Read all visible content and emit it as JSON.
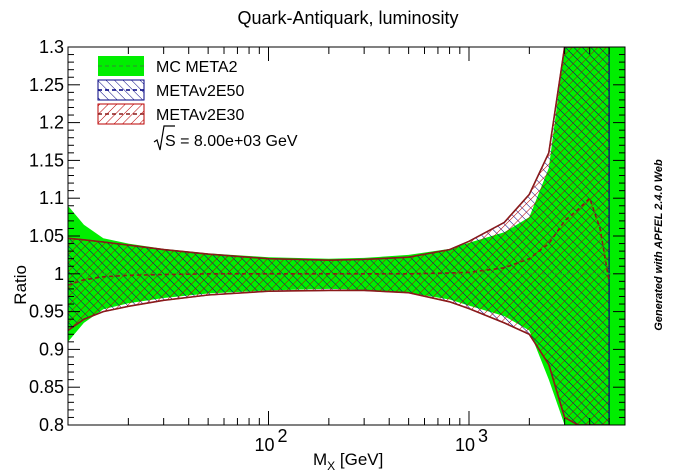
{
  "chart_data": {
    "type": "area",
    "title": "Quark-Antiquark, luminosity",
    "xlabel": "M_X [GeV]",
    "xlabel_main": "M",
    "xlabel_sub": "X",
    "xlabel_unit": " [GeV]",
    "ylabel": "Ratio",
    "x_scale": "log",
    "xlim": [
      10,
      6000
    ],
    "ylim": [
      0.8,
      1.3
    ],
    "y_ticks": [
      0.8,
      0.85,
      0.9,
      0.95,
      1.0,
      1.05,
      1.1,
      1.15,
      1.2,
      1.25,
      1.3
    ],
    "y_tick_labels": [
      "0.8",
      "0.85",
      "0.9",
      "0.95",
      "1",
      "1.05",
      "1.1",
      "1.15",
      "1.2",
      "1.25",
      "1.3"
    ],
    "x_major_ticks": [
      100,
      1000
    ],
    "x_tick_label_base": "10",
    "x_tick_label_exps": [
      "2",
      "3"
    ],
    "reference_line": 1.0,
    "legend": {
      "placement": "top-left",
      "entries": [
        "MC META2",
        "METAv2E50",
        "METAv2E30"
      ],
      "note_prefix": "S = 8.00e+03 GeV"
    },
    "series": [
      {
        "name": "MC META2",
        "color": "#00ee00",
        "line_color": "#22aa22",
        "x": [
          10,
          12,
          15,
          20,
          30,
          50,
          100,
          200,
          300,
          500,
          800,
          1000,
          1500,
          2000,
          2500,
          3000,
          3500,
          4000,
          4500,
          5000,
          5500,
          6000
        ],
        "upper": [
          1.09,
          1.065,
          1.047,
          1.04,
          1.033,
          1.027,
          1.022,
          1.02,
          1.021,
          1.025,
          1.033,
          1.041,
          1.055,
          1.075,
          1.14,
          1.3,
          1.3,
          1.3,
          1.3,
          1.3,
          1.3,
          1.3
        ],
        "lower": [
          0.91,
          0.935,
          0.953,
          0.961,
          0.968,
          0.974,
          0.978,
          0.98,
          0.979,
          0.975,
          0.966,
          0.958,
          0.944,
          0.925,
          0.86,
          0.8,
          0.8,
          0.8,
          0.8,
          0.8,
          0.8,
          0.8
        ],
        "central": [
          1.0,
          1.0,
          1.0,
          1.0,
          1.0,
          1.0,
          1.0,
          1.0,
          1.0,
          1.0,
          1.0,
          1.0,
          1.0,
          1.0,
          1.0,
          1.0,
          1.0,
          1.0,
          1.0,
          1.0,
          1.0,
          1.0
        ]
      },
      {
        "name": "METAv2E50",
        "color": "#000080",
        "x": [
          10,
          12,
          15,
          20,
          30,
          50,
          100,
          200,
          300,
          500,
          800,
          1000,
          1500,
          2000,
          2500,
          3000,
          3500,
          4000,
          4500,
          5000
        ],
        "upper": [
          1.047,
          1.045,
          1.042,
          1.038,
          1.032,
          1.026,
          1.02,
          1.018,
          1.019,
          1.022,
          1.032,
          1.043,
          1.068,
          1.105,
          1.16,
          1.3,
          1.3,
          1.3,
          1.3,
          1.3
        ],
        "lower": [
          0.925,
          0.94,
          0.95,
          0.957,
          0.965,
          0.972,
          0.977,
          0.978,
          0.978,
          0.975,
          0.963,
          0.954,
          0.935,
          0.92,
          0.88,
          0.81,
          0.8,
          0.8,
          0.8,
          0.8
        ],
        "central": [
          0.985,
          0.992,
          0.996,
          0.998,
          0.999,
          1.0,
          1.0,
          1.0,
          1.0,
          1.0,
          1.001,
          1.002,
          1.008,
          1.02,
          1.04,
          1.07,
          1.085,
          1.1,
          1.06,
          0.99
        ]
      },
      {
        "name": "METAv2E30",
        "color": "#bb0000",
        "x": [
          10,
          12,
          15,
          20,
          30,
          50,
          100,
          200,
          300,
          500,
          800,
          1000,
          1500,
          2000,
          2500,
          3000,
          3500,
          4000,
          4500,
          5000
        ],
        "upper": [
          1.047,
          1.045,
          1.042,
          1.038,
          1.032,
          1.026,
          1.02,
          1.018,
          1.019,
          1.022,
          1.032,
          1.043,
          1.068,
          1.105,
          1.16,
          1.3,
          1.3,
          1.3,
          1.3,
          1.3
        ],
        "lower": [
          0.925,
          0.94,
          0.95,
          0.957,
          0.965,
          0.972,
          0.977,
          0.978,
          0.978,
          0.975,
          0.963,
          0.954,
          0.935,
          0.92,
          0.88,
          0.81,
          0.8,
          0.8,
          0.8,
          0.8
        ],
        "central": [
          0.985,
          0.992,
          0.996,
          0.998,
          0.999,
          1.0,
          1.0,
          1.0,
          1.0,
          1.0,
          1.001,
          1.002,
          1.008,
          1.02,
          1.04,
          1.07,
          1.085,
          1.1,
          1.06,
          0.99
        ]
      }
    ]
  },
  "watermark": "Generated with APFEL 2.4.0 Web",
  "colors": {
    "mc_fill": "#00ee00",
    "e50_hatch": "#000080",
    "e30_hatch": "#bb0000",
    "e30_line": "#8b1a1a"
  }
}
